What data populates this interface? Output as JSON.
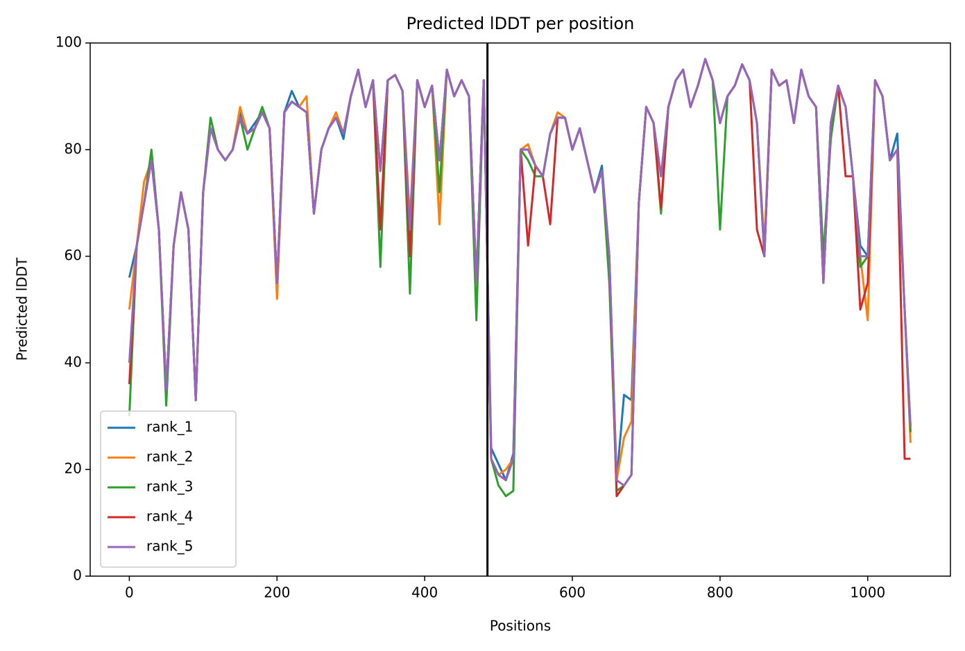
{
  "chart_data": {
    "type": "line",
    "title": "Predicted lDDT per position",
    "xlabel": "Positions",
    "ylabel": "Predicted lDDT",
    "x": [
      0,
      10,
      20,
      30,
      40,
      50,
      60,
      70,
      80,
      90,
      100,
      110,
      120,
      130,
      140,
      150,
      160,
      170,
      180,
      190,
      200,
      210,
      220,
      230,
      240,
      250,
      260,
      270,
      280,
      290,
      300,
      310,
      320,
      330,
      340,
      350,
      360,
      370,
      380,
      390,
      400,
      410,
      420,
      430,
      440,
      450,
      460,
      470,
      480,
      490,
      500,
      510,
      520,
      530,
      540,
      550,
      560,
      570,
      580,
      590,
      600,
      610,
      620,
      630,
      640,
      650,
      660,
      670,
      680,
      690,
      700,
      710,
      720,
      730,
      740,
      750,
      760,
      770,
      780,
      790,
      800,
      810,
      820,
      830,
      840,
      850,
      860,
      870,
      880,
      890,
      900,
      910,
      920,
      930,
      940,
      950,
      960,
      970,
      980,
      990,
      1000,
      1010,
      1020,
      1030,
      1040,
      1050,
      1058
    ],
    "series": [
      {
        "name": "rank_1",
        "color": "#1f77b4",
        "values": [
          56,
          62,
          70,
          78,
          65,
          35,
          62,
          72,
          65,
          33,
          72,
          84,
          80,
          78,
          80,
          87,
          83,
          85,
          87,
          84,
          55,
          87,
          91,
          88,
          87,
          68,
          80,
          84,
          86,
          82,
          90,
          95,
          88,
          93,
          76,
          93,
          94,
          91,
          65,
          93,
          88,
          92,
          78,
          95,
          90,
          93,
          90,
          55,
          93,
          24,
          21,
          18,
          23,
          80,
          80,
          77,
          75,
          83,
          86,
          86,
          80,
          84,
          78,
          72,
          77,
          60,
          18,
          34,
          33,
          70,
          88,
          85,
          75,
          88,
          93,
          95,
          88,
          92,
          97,
          93,
          85,
          90,
          92,
          96,
          93,
          85,
          60,
          95,
          92,
          93,
          85,
          95,
          90,
          88,
          55,
          85,
          92,
          88,
          75,
          62,
          60,
          93,
          90,
          78,
          83,
          50,
          28
        ]
      },
      {
        "name": "rank_2",
        "color": "#ff7f0e",
        "values": [
          50,
          62,
          74,
          78,
          65,
          35,
          62,
          72,
          65,
          33,
          72,
          84,
          80,
          78,
          80,
          88,
          83,
          84,
          87,
          84,
          52,
          87,
          89,
          88,
          90,
          68,
          80,
          84,
          87,
          83,
          90,
          95,
          88,
          93,
          76,
          93,
          94,
          91,
          67,
          93,
          88,
          92,
          66,
          95,
          90,
          93,
          90,
          55,
          93,
          22,
          19,
          20,
          22,
          80,
          81,
          77,
          75,
          83,
          87,
          86,
          80,
          84,
          78,
          72,
          76,
          58,
          18,
          26,
          29,
          70,
          88,
          85,
          75,
          88,
          93,
          95,
          88,
          92,
          97,
          93,
          85,
          90,
          92,
          96,
          93,
          85,
          62,
          95,
          92,
          93,
          85,
          95,
          90,
          88,
          55,
          85,
          92,
          88,
          75,
          60,
          48,
          93,
          90,
          78,
          80,
          50,
          25
        ]
      },
      {
        "name": "rank_3",
        "color": "#2ca02c",
        "values": [
          30,
          62,
          70,
          80,
          65,
          32,
          62,
          72,
          65,
          33,
          72,
          86,
          80,
          78,
          80,
          86,
          80,
          84,
          88,
          84,
          55,
          87,
          89,
          88,
          87,
          68,
          80,
          84,
          86,
          83,
          90,
          95,
          88,
          93,
          58,
          93,
          94,
          91,
          53,
          93,
          88,
          92,
          72,
          95,
          90,
          93,
          90,
          48,
          93,
          22,
          17,
          15,
          16,
          80,
          78,
          75,
          75,
          83,
          86,
          86,
          80,
          84,
          78,
          72,
          76,
          55,
          16,
          17,
          19,
          70,
          88,
          85,
          68,
          88,
          93,
          95,
          88,
          92,
          97,
          93,
          65,
          90,
          92,
          96,
          93,
          85,
          60,
          95,
          92,
          93,
          85,
          95,
          90,
          88,
          60,
          82,
          92,
          88,
          75,
          58,
          60,
          93,
          90,
          78,
          80,
          50,
          27
        ]
      },
      {
        "name": "rank_4",
        "color": "#d62728",
        "values": [
          36,
          62,
          70,
          78,
          65,
          35,
          62,
          72,
          65,
          33,
          72,
          84,
          80,
          78,
          80,
          86,
          83,
          84,
          87,
          84,
          55,
          87,
          89,
          88,
          87,
          68,
          80,
          84,
          86,
          83,
          90,
          95,
          88,
          93,
          65,
          93,
          94,
          91,
          60,
          93,
          88,
          92,
          78,
          95,
          90,
          93,
          90,
          55,
          93,
          22,
          19,
          18,
          22,
          80,
          62,
          77,
          75,
          66,
          86,
          86,
          80,
          84,
          78,
          72,
          76,
          60,
          15,
          17,
          19,
          70,
          88,
          85,
          69,
          88,
          93,
          95,
          88,
          92,
          97,
          93,
          85,
          90,
          92,
          96,
          93,
          65,
          60,
          95,
          92,
          93,
          85,
          95,
          90,
          88,
          55,
          85,
          92,
          75,
          75,
          50,
          55,
          93,
          90,
          78,
          80,
          22,
          22
        ]
      },
      {
        "name": "rank_5",
        "color": "#9467bd",
        "values": [
          40,
          62,
          70,
          78,
          65,
          35,
          62,
          72,
          65,
          33,
          72,
          84,
          80,
          78,
          80,
          86,
          83,
          84,
          87,
          84,
          55,
          87,
          89,
          88,
          87,
          68,
          80,
          84,
          86,
          83,
          90,
          95,
          88,
          93,
          76,
          93,
          94,
          91,
          65,
          93,
          88,
          92,
          78,
          95,
          90,
          93,
          90,
          55,
          93,
          22,
          19,
          18,
          22,
          80,
          80,
          77,
          75,
          83,
          86,
          86,
          80,
          84,
          78,
          72,
          76,
          60,
          18,
          17,
          19,
          70,
          88,
          85,
          75,
          88,
          93,
          95,
          88,
          92,
          97,
          93,
          85,
          90,
          92,
          96,
          93,
          85,
          60,
          95,
          92,
          93,
          85,
          95,
          90,
          88,
          55,
          85,
          92,
          88,
          75,
          60,
          60,
          93,
          90,
          78,
          80,
          50,
          28
        ]
      }
    ],
    "vline": 485,
    "vline_color": "#000000",
    "xlim": [
      -53,
      1112
    ],
    "ylim": [
      0,
      100
    ],
    "xticks": [
      0,
      200,
      400,
      600,
      800,
      1000
    ],
    "yticks": [
      0,
      20,
      40,
      60,
      80,
      100
    ],
    "legend": "lower left"
  }
}
